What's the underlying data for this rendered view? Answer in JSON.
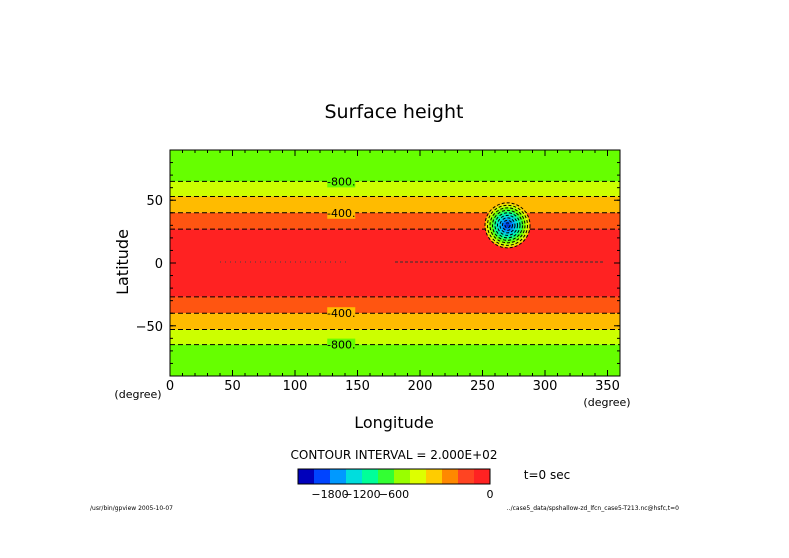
{
  "chart_data": {
    "type": "heatmap",
    "title": "Surface height",
    "xlabel": "Longitude",
    "ylabel": "Latitude",
    "x_unit": "(degree)",
    "y_unit": "(degree)",
    "xlim": [
      0,
      360
    ],
    "ylim": [
      -90,
      90
    ],
    "x_ticks": [
      0,
      50,
      100,
      150,
      200,
      250,
      300,
      350
    ],
    "y_ticks": [
      50,
      0,
      -50
    ],
    "y_tick_labels": [
      "50",
      "0",
      "−50"
    ],
    "bands": [
      {
        "lat_min": 65,
        "lat_max": 90,
        "color": "#66ff00"
      },
      {
        "lat_min": 53,
        "lat_max": 65,
        "color": "#ccff00"
      },
      {
        "lat_min": 40,
        "lat_max": 53,
        "color": "#ffbb00"
      },
      {
        "lat_min": 27,
        "lat_max": 40,
        "color": "#ff5511"
      },
      {
        "lat_min": -27,
        "lat_max": 27,
        "color": "#ff2222"
      },
      {
        "lat_min": -40,
        "lat_max": -27,
        "color": "#ff5511"
      },
      {
        "lat_min": -53,
        "lat_max": -40,
        "color": "#ffbb00"
      },
      {
        "lat_min": -65,
        "lat_max": -53,
        "color": "#ccff00"
      },
      {
        "lat_min": -90,
        "lat_max": -65,
        "color": "#66ff00"
      }
    ],
    "contour_lines": [
      65,
      53,
      40,
      27,
      -27,
      -40,
      -53,
      -65
    ],
    "contour_labels": [
      {
        "text": "-800.",
        "lon": 137,
        "lat": 65
      },
      {
        "text": "-400.",
        "lon": 137,
        "lat": 40
      },
      {
        "text": "-400.",
        "lon": 137,
        "lat": -40
      },
      {
        "text": "-800.",
        "lon": 137,
        "lat": -65
      }
    ],
    "feature": {
      "lon": 270,
      "lat": 30,
      "radius_deg": 18
    },
    "contour_interval_label": "CONTOUR INTERVAL = 2.000E+02",
    "time_label": "t=0 sec",
    "colorbar": {
      "colors": [
        "#0000bb",
        "#0044ff",
        "#0099ff",
        "#00dddd",
        "#00ff99",
        "#33ff33",
        "#99ff00",
        "#ddff00",
        "#ffcc00",
        "#ff8800",
        "#ff4422",
        "#ff2222"
      ],
      "tick_labels": [
        "−1800",
        "−1200",
        "−600",
        "0"
      ],
      "tick_positions": [
        2,
        4,
        6,
        8
      ]
    }
  },
  "footer": {
    "left": "/usr/bin/gpview  2005-10-07",
    "right": "../case5_data/spshallow-zd_lfcn_case5-T213.nc@hsfc,t=0"
  }
}
